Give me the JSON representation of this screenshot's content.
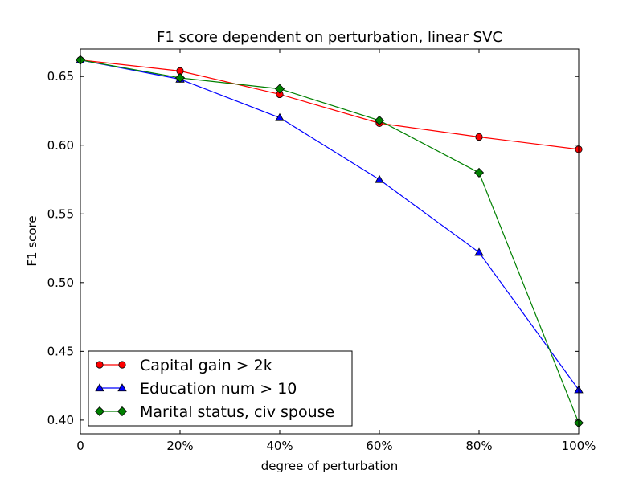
{
  "chart_data": {
    "type": "line",
    "title": "F1 score dependent on perturbation, linear SVC",
    "xlabel": "degree of perturbation",
    "ylabel": "F1 score",
    "categories": [
      "0",
      "20%",
      "40%",
      "60%",
      "80%",
      "100%"
    ],
    "x": [
      0,
      20,
      40,
      60,
      80,
      100
    ],
    "xlim": [
      0,
      100
    ],
    "ylim": [
      0.39,
      0.67
    ],
    "yticks": [
      0.4,
      0.45,
      0.5,
      0.55,
      0.6,
      0.65
    ],
    "ytick_labels": [
      "0.40",
      "0.45",
      "0.50",
      "0.55",
      "0.60",
      "0.65"
    ],
    "grid": false,
    "legend_position": "bottom-left",
    "series": [
      {
        "name": "Capital gain > 2k",
        "color": "#ff0000",
        "marker": "circle",
        "values": [
          0.662,
          0.654,
          0.637,
          0.616,
          0.606,
          0.597
        ]
      },
      {
        "name": "Education num > 10",
        "color": "#0000ff",
        "marker": "triangle",
        "values": [
          0.662,
          0.648,
          0.62,
          0.575,
          0.522,
          0.422
        ]
      },
      {
        "name": "Marital status, civ spouse",
        "color": "#008000",
        "marker": "diamond",
        "values": [
          0.662,
          0.649,
          0.641,
          0.618,
          0.58,
          0.398
        ]
      }
    ]
  }
}
